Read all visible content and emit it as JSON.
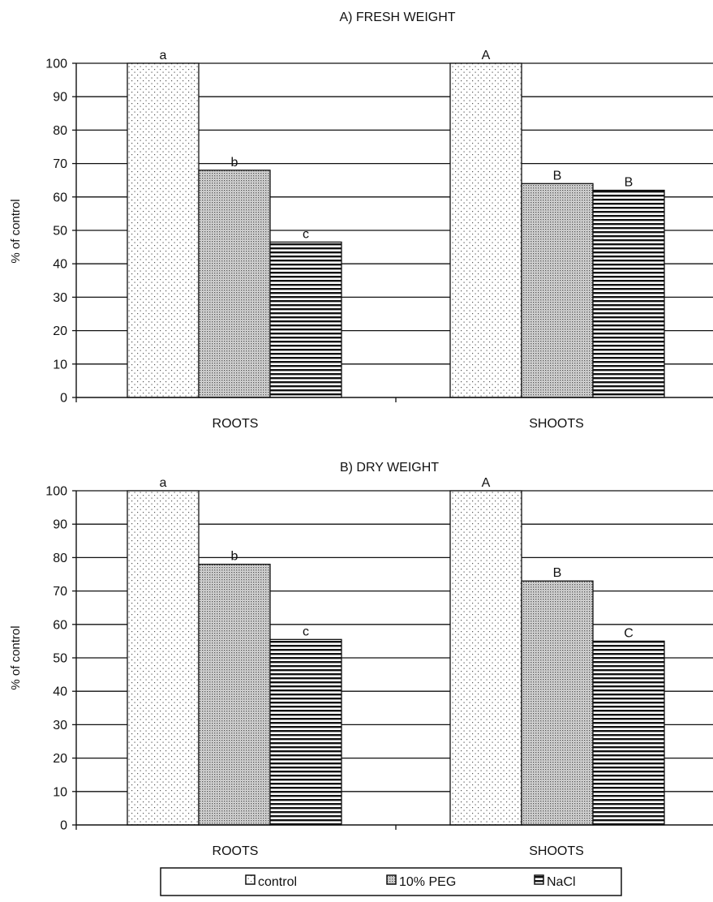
{
  "chart_data": [
    {
      "type": "bar",
      "title": "A) FRESH WEIGHT",
      "ylabel": "% of control",
      "ylim": [
        0,
        100
      ],
      "yticks": [
        0,
        10,
        20,
        30,
        40,
        50,
        60,
        70,
        80,
        90,
        100
      ],
      "grid": true,
      "categories": [
        "ROOTS",
        "SHOOTS"
      ],
      "series": [
        {
          "name": "control",
          "values": [
            100,
            100
          ],
          "labels": [
            "a",
            "A"
          ]
        },
        {
          "name": "10% PEG",
          "values": [
            68,
            64
          ],
          "labels": [
            "b",
            "B"
          ]
        },
        {
          "name": "NaCl",
          "values": [
            46.5,
            62
          ],
          "labels": [
            "c",
            "B"
          ]
        }
      ]
    },
    {
      "type": "bar",
      "title": "B) DRY WEIGHT",
      "ylabel": "% of control",
      "ylim": [
        0,
        100
      ],
      "yticks": [
        0,
        10,
        20,
        30,
        40,
        50,
        60,
        70,
        80,
        90,
        100
      ],
      "grid": true,
      "categories": [
        "ROOTS",
        "SHOOTS"
      ],
      "series": [
        {
          "name": "control",
          "values": [
            100,
            100
          ],
          "labels": [
            "a",
            "A"
          ]
        },
        {
          "name": "10% PEG",
          "values": [
            78,
            73
          ],
          "labels": [
            "b",
            "B"
          ]
        },
        {
          "name": "NaCl",
          "values": [
            55.5,
            55
          ],
          "labels": [
            "c",
            "C"
          ]
        }
      ]
    }
  ],
  "legend": {
    "position": "bottom",
    "items": [
      {
        "label": "control",
        "pattern": "dots"
      },
      {
        "label": "10% PEG",
        "pattern": "dense"
      },
      {
        "label": "NaCl",
        "pattern": "hlines"
      }
    ]
  }
}
